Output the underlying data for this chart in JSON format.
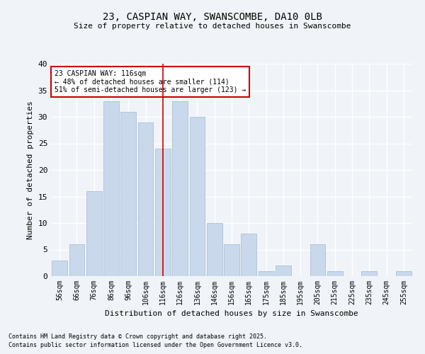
{
  "title1": "23, CASPIAN WAY, SWANSCOMBE, DA10 0LB",
  "title2": "Size of property relative to detached houses in Swanscombe",
  "xlabel": "Distribution of detached houses by size in Swanscombe",
  "ylabel": "Number of detached properties",
  "categories": [
    "56sqm",
    "66sqm",
    "76sqm",
    "86sqm",
    "96sqm",
    "106sqm",
    "116sqm",
    "126sqm",
    "136sqm",
    "146sqm",
    "156sqm",
    "165sqm",
    "175sqm",
    "185sqm",
    "195sqm",
    "205sqm",
    "215sqm",
    "225sqm",
    "235sqm",
    "245sqm",
    "255sqm"
  ],
  "values": [
    3,
    6,
    16,
    33,
    31,
    29,
    24,
    33,
    30,
    10,
    6,
    8,
    1,
    2,
    0,
    6,
    1,
    0,
    1,
    0,
    1
  ],
  "bar_color": "#c9d9eb",
  "bar_edgecolor": "#a0b8d0",
  "highlight_index": 6,
  "highlight_line_color": "#cc0000",
  "ylim": [
    0,
    40
  ],
  "yticks": [
    0,
    5,
    10,
    15,
    20,
    25,
    30,
    35,
    40
  ],
  "annotation_text": "23 CASPIAN WAY: 116sqm\n← 48% of detached houses are smaller (114)\n51% of semi-detached houses are larger (123) →",
  "annotation_box_color": "#ffffff",
  "annotation_box_edgecolor": "#cc0000",
  "footer1": "Contains HM Land Registry data © Crown copyright and database right 2025.",
  "footer2": "Contains public sector information licensed under the Open Government Licence v3.0.",
  "background_color": "#f0f4f8",
  "grid_color": "#ffffff"
}
